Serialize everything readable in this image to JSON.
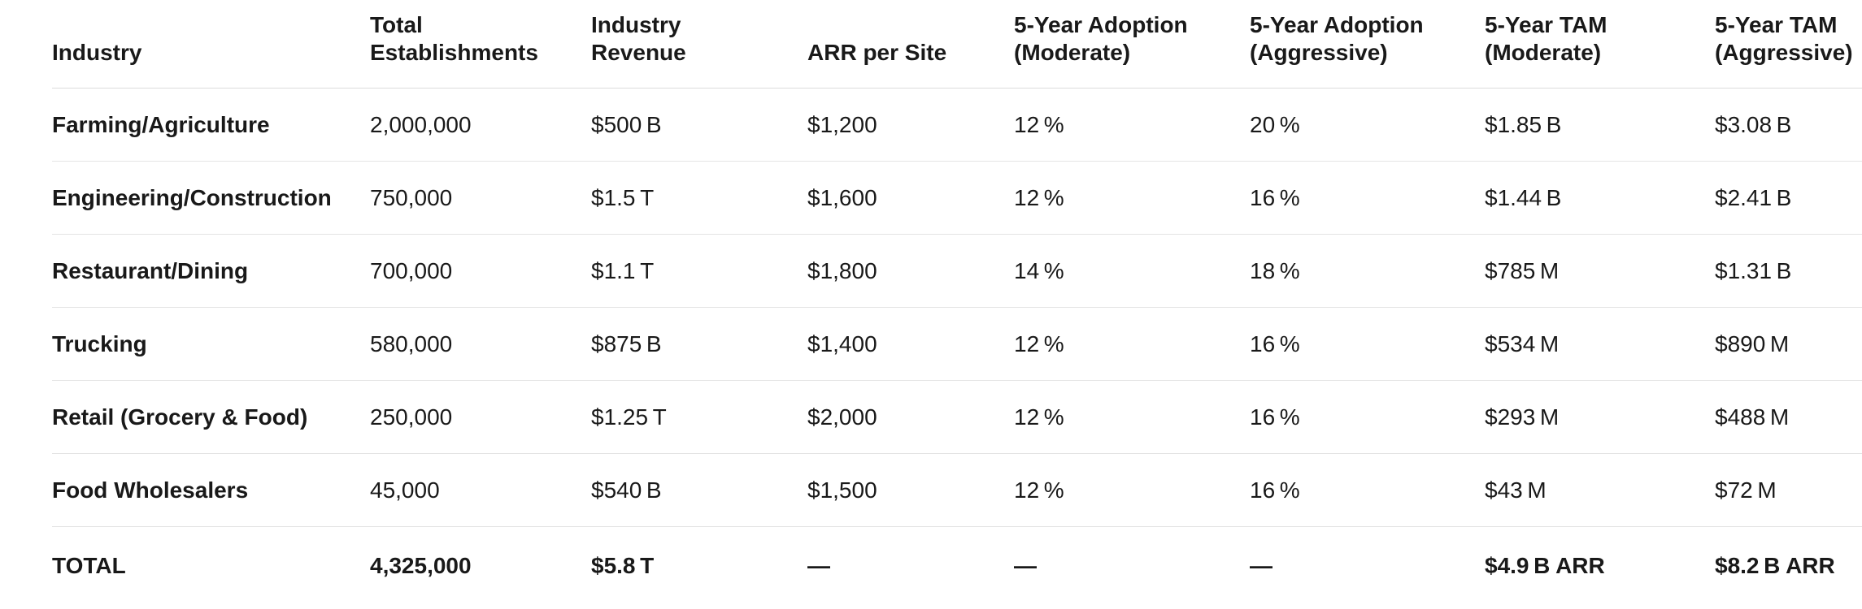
{
  "table": {
    "columns": [
      "Industry",
      "Total\nEstablishments",
      "Industry\nRevenue",
      "ARR per Site",
      "5-Year Adoption\n(Moderate)",
      "5-Year Adoption\n(Aggressive)",
      "5-Year TAM\n(Moderate)",
      "5-Year TAM\n(Aggressive)"
    ],
    "rows": [
      [
        "Farming/Agriculture",
        "2,000,000",
        "$500 B",
        "$1,200",
        "12 %",
        "20 %",
        "$1.85 B",
        "$3.08 B"
      ],
      [
        "Engineering/Construction",
        "750,000",
        "$1.5 T",
        "$1,600",
        "12 %",
        "16 %",
        "$1.44 B",
        "$2.41 B"
      ],
      [
        "Restaurant/Dining",
        "700,000",
        "$1.1 T",
        "$1,800",
        "14 %",
        "18 %",
        "$785 M",
        "$1.31 B"
      ],
      [
        "Trucking",
        "580,000",
        "$875 B",
        "$1,400",
        "12 %",
        "16 %",
        "$534 M",
        "$890 M"
      ],
      [
        "Retail (Grocery & Food)",
        "250,000",
        "$1.25 T",
        "$2,000",
        "12 %",
        "16 %",
        "$293 M",
        "$488 M"
      ],
      [
        "Food Wholesalers",
        "45,000",
        "$540 B",
        "$1,500",
        "12 %",
        "16 %",
        "$43 M",
        "$72 M"
      ]
    ],
    "total": [
      "TOTAL",
      "4,325,000",
      "$5.8 T",
      "—",
      "—",
      "—",
      "$4.9 B ARR",
      "$8.2 B ARR"
    ]
  },
  "colors": {
    "text": "#191919",
    "row_divider": "#e4e4e4",
    "header_divider": "#dcdcdc",
    "background": "#ffffff"
  }
}
